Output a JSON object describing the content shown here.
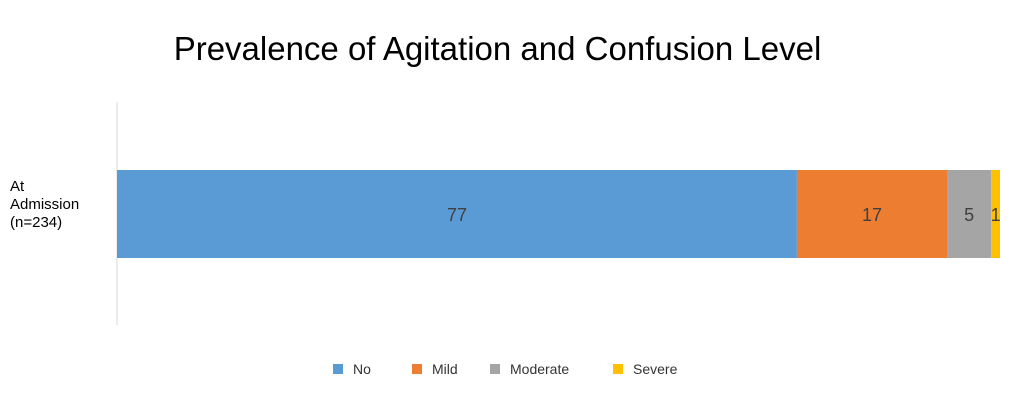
{
  "chart_data": {
    "type": "bar",
    "orientation": "horizontal",
    "stacked": true,
    "title": "Prevalence of Agitation and Confusion Level",
    "categories": [
      "At\nAdmission\n(n=234)"
    ],
    "series": [
      {
        "name": "No",
        "values": [
          77
        ],
        "color": "#5B9BD5"
      },
      {
        "name": "Mild",
        "values": [
          17
        ],
        "color": "#ED7D31"
      },
      {
        "name": "Moderate",
        "values": [
          5
        ],
        "color": "#A5A5A5"
      },
      {
        "name": "Severe",
        "values": [
          1
        ],
        "color": "#FFC000"
      }
    ],
    "data_labels": [
      "77",
      "17",
      "5",
      "1"
    ],
    "xlim": [
      0,
      100
    ],
    "legend_position": "bottom",
    "grid": false
  }
}
